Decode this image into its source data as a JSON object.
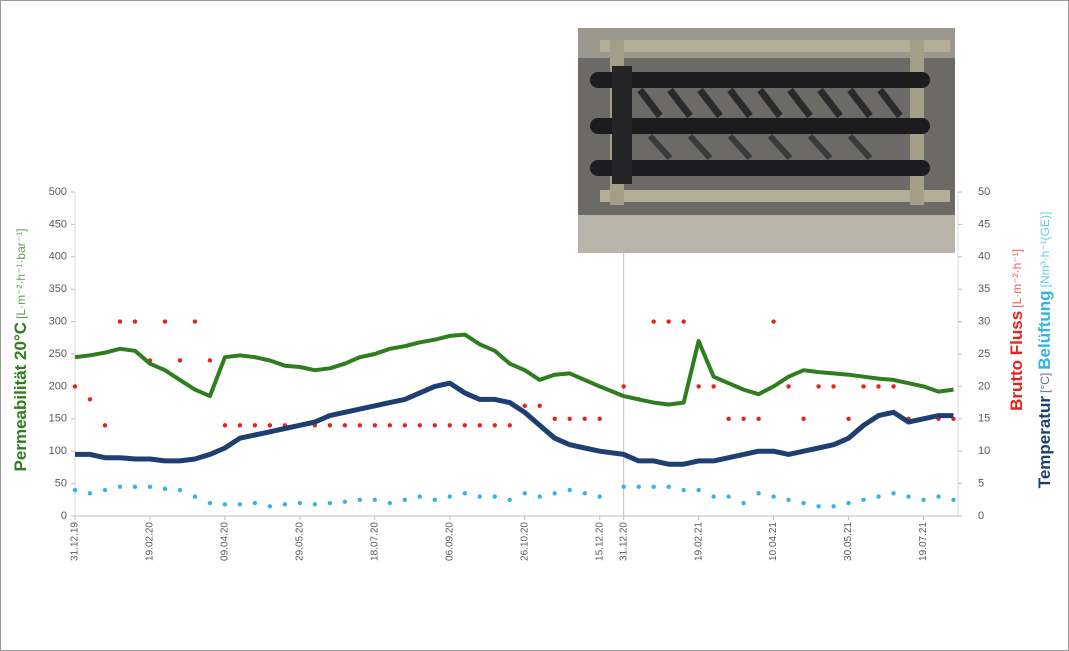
{
  "chart_data": {
    "type": "scatter",
    "y_title": {
      "bold": "Permeabilität 20°C",
      "unit": "[L·m⁻²·h⁻¹·bar⁻¹]",
      "color": "#2e7d1e"
    },
    "y2_title_flux": {
      "bold": "Brutto Fluss",
      "unit": "[L·m⁻²·h⁻¹]",
      "color": "#e8211b"
    },
    "y2_title_temp": {
      "bold": "Temperatur",
      "unit": "[°C]",
      "color": "#1f3f73"
    },
    "y2_title_air": {
      "bold": "Belüftung",
      "unit": "[Nm³·h⁻¹(GE)]",
      "color": "#35b3e8"
    },
    "x": [
      "31.12.19",
      "10.01.20",
      "20.01.20",
      "30.01.20",
      "09.02.20",
      "19.02.20",
      "29.02.20",
      "10.03.20",
      "20.03.20",
      "30.03.20",
      "09.04.20",
      "19.04.20",
      "29.04.20",
      "09.05.20",
      "19.05.20",
      "29.05.20",
      "08.06.20",
      "18.06.20",
      "28.06.20",
      "08.07.20",
      "18.07.20",
      "28.07.20",
      "07.08.20",
      "17.08.20",
      "27.08.20",
      "06.09.20",
      "16.09.20",
      "26.09.20",
      "06.10.20",
      "16.10.20",
      "26.10.20",
      "05.11.20",
      "15.11.20",
      "25.11.20",
      "05.12.20",
      "15.12.20",
      "31.12.20",
      "10.01.21",
      "20.01.21",
      "30.01.21",
      "09.02.21",
      "19.02.21",
      "01.03.21",
      "11.03.21",
      "21.03.21",
      "31.03.21",
      "10.04.21",
      "20.04.21",
      "30.04.21",
      "10.05.21",
      "20.05.21",
      "30.05.21",
      "09.06.21",
      "19.06.21",
      "29.06.21",
      "09.07.21",
      "19.07.21",
      "29.07.21",
      "08.08.21"
    ],
    "xlim": [
      "31.12.19",
      "11.08.21"
    ],
    "xticks": [
      "31.12.19",
      "19.02.20",
      "09.04.20",
      "29.05.20",
      "18.07.20",
      "06.09.20",
      "26.10.20",
      "15.12.20",
      "31.12.20",
      "19.02.21",
      "10.04.21",
      "30.05.21",
      "19.07.21"
    ],
    "vlines": [
      "31.12.20"
    ],
    "ylim": [
      0,
      500
    ],
    "yticks": [
      0,
      50,
      100,
      150,
      200,
      250,
      300,
      350,
      400,
      450,
      500
    ],
    "y2lim": [
      0,
      50
    ],
    "y2ticks": [
      0,
      5,
      10,
      15,
      20,
      25,
      30,
      35,
      40,
      45,
      50
    ],
    "grid": false,
    "series": [
      {
        "name": "Brutto Fluss",
        "color": "#e8211b",
        "axis": "y2",
        "style": "dots",
        "values": [
          20,
          18,
          14,
          30,
          30,
          24,
          30,
          24,
          30,
          24,
          14,
          14,
          14,
          14,
          14,
          14,
          14,
          14,
          14,
          14,
          14,
          14,
          14,
          14,
          14,
          14,
          14,
          14,
          14,
          14,
          17,
          17,
          15,
          15,
          15,
          15,
          20,
          18,
          30,
          30,
          30,
          20,
          20,
          15,
          15,
          15,
          30,
          20,
          15,
          20,
          20,
          15,
          20,
          20,
          20,
          15,
          15,
          15,
          15
        ]
      },
      {
        "name": "Belüftung",
        "color": "#35b3e8",
        "axis": "y2",
        "style": "dots",
        "values": [
          4,
          3.5,
          4,
          4.5,
          4.5,
          4.5,
          4.2,
          4,
          3,
          2,
          1.8,
          1.8,
          2,
          1.5,
          1.8,
          2,
          1.8,
          2,
          2.2,
          2.5,
          2.5,
          2,
          2.5,
          3,
          2.5,
          3,
          3.5,
          3,
          3,
          2.5,
          3.5,
          3,
          3.5,
          4,
          3.5,
          3,
          4.5,
          4.5,
          4.5,
          4.5,
          4,
          4,
          3,
          3,
          2,
          3.5,
          3,
          2.5,
          2,
          1.5,
          1.5,
          2,
          2.5,
          3,
          3.5,
          3,
          2.5,
          3,
          2.5
        ]
      },
      {
        "name": "Permeabilität 20°C",
        "color": "#2e7d1e",
        "axis": "y",
        "style": "line",
        "values": [
          245,
          248,
          252,
          258,
          255,
          235,
          225,
          210,
          195,
          185,
          245,
          248,
          245,
          240,
          232,
          230,
          225,
          228,
          235,
          245,
          250,
          258,
          262,
          268,
          272,
          278,
          280,
          265,
          255,
          235,
          225,
          210,
          218,
          220,
          210,
          200,
          185,
          180,
          175,
          172,
          175,
          270,
          215,
          205,
          195,
          188,
          200,
          215,
          225,
          222,
          220,
          218,
          215,
          212,
          210,
          205,
          200,
          192,
          195
        ]
      },
      {
        "name": "Temperatur",
        "color": "#1f3f73",
        "axis": "y2",
        "style": "line",
        "values": [
          9.5,
          9.5,
          9,
          9,
          8.8,
          8.8,
          8.5,
          8.5,
          8.8,
          9.5,
          10.5,
          12,
          12.5,
          13,
          13.5,
          14,
          14.5,
          15.5,
          16,
          16.5,
          17,
          17.5,
          18,
          19,
          20,
          20.5,
          19,
          18,
          18,
          17.5,
          16,
          14,
          12,
          11,
          10.5,
          10,
          9.5,
          8.5,
          8.5,
          8,
          8,
          8.5,
          8.5,
          9,
          9.5,
          10,
          10,
          9.5,
          10,
          10.5,
          11,
          12,
          14,
          15.5,
          16,
          14.5,
          15,
          15.5,
          15.5
        ]
      }
    ]
  }
}
